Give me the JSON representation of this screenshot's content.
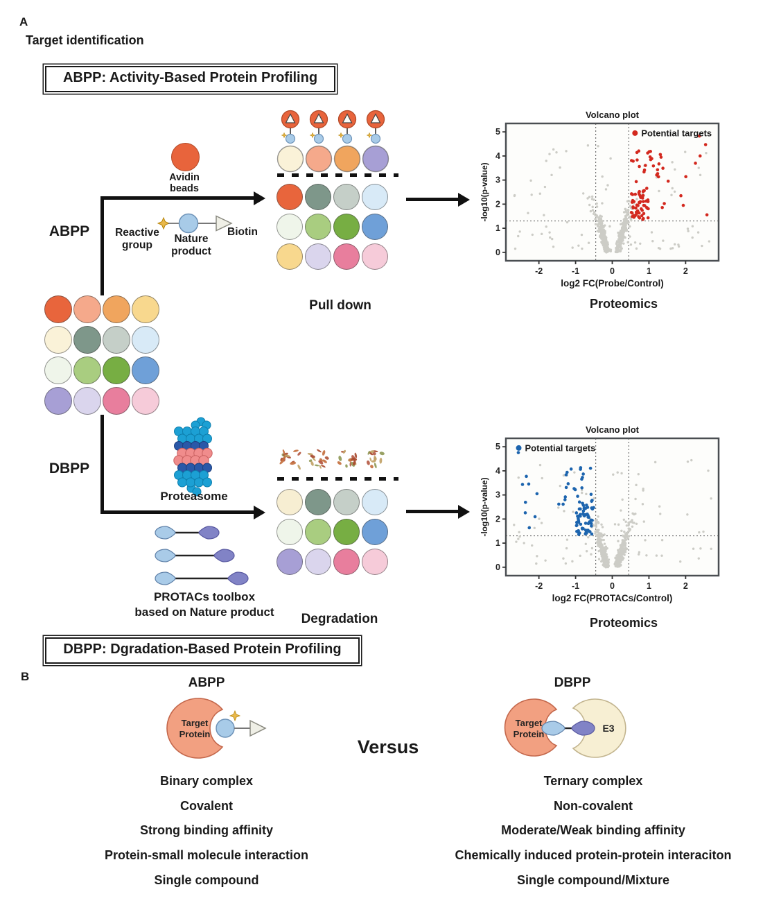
{
  "panelA": {
    "label": "A",
    "title": "Target identification",
    "abpp_box": "ABPP: Activity-Based Protein Profiling",
    "dbpp_box": "DBPP: Dgradation-Based Protein Profiling",
    "abpp_branch": "ABPP",
    "dbpp_branch": "DBPP",
    "avidin_label": "Avidin beads",
    "reactive_group_label": "Reactive group",
    "nature_product_label": "Nature product",
    "biotin_label": "Biotin",
    "pull_down_label": "Pull down",
    "proteomics_top": "Proteomics",
    "proteasome_label": "Proteasome",
    "protacs_label_line1": "PROTACs toolbox",
    "protacs_label_line2": "based on Nature product",
    "degradation_label": "Degradation",
    "proteomics_bottom": "Proteomics",
    "cell_library_rows": [
      [
        "#E8653C",
        "#F5A98B",
        "#F0A55E",
        "#F8D88E"
      ],
      [
        "#FAF2D8",
        "#7E978A",
        "#C5CFC8",
        "#D8EAF7"
      ],
      [
        "#EFF5EA",
        "#A9CD80",
        "#77AE43",
        "#6FA0D8"
      ],
      [
        "#A79FD5",
        "#DAD5ED",
        "#E87E9D",
        "#F6CBD9"
      ]
    ],
    "pulldown": {
      "captured_colors": [
        "#FAF2D8",
        "#F5A98B",
        "#F0A55E",
        "#A79FD5"
      ],
      "rows": [
        [
          "#E8653C",
          "#7E978A",
          "#C5CFC8",
          "#D8EAF7"
        ],
        [
          "#EFF5EA",
          "#A9CD80",
          "#77AE43",
          "#6FA0D8"
        ],
        [
          "#F8D88E",
          "#DAD5ED",
          "#E87E9D",
          "#F6CBD9"
        ]
      ],
      "bead_color": "#E8643C",
      "ligand_color": "#A8CBE8",
      "star_color": "#E8B84B"
    },
    "degradation": {
      "speckle_colors": [
        "#A84A2F",
        "#C4703F",
        "#909A58",
        "#C2A368",
        "#B55B45"
      ],
      "rows": [
        [
          "#F7EED2",
          "#7E978A",
          "#C5CFC8",
          "#D8EAF7"
        ],
        [
          "#EFF5EA",
          "#A9CD80",
          "#77AE43",
          "#6FA0D8"
        ],
        [
          "#A79FD5",
          "#DAD5ED",
          "#E87E9D",
          "#F6CBD9"
        ]
      ]
    },
    "protac_lengths": [
      56,
      78,
      98
    ],
    "proteasome_rows": [
      "cyan",
      "cyan",
      "dark",
      "pink",
      "pink",
      "dark",
      "cyan",
      "cyan"
    ],
    "proteasome_colors": {
      "cyan": "#1CA0D4",
      "dark": "#2A58A8",
      "pink": "#F08C8C"
    }
  },
  "chart_data": [
    {
      "type": "scatter",
      "title": "Volcano plot",
      "xlabel": "log2 FC(Probe/Control)",
      "ylabel": "-log10(p-value)",
      "xlim": [
        -2.9,
        2.9
      ],
      "ylim": [
        -0.35,
        5.35
      ],
      "xticks": [
        -2,
        -1,
        0,
        1,
        2
      ],
      "yticks": [
        0,
        1,
        2,
        3,
        4,
        5
      ],
      "threshold_x": [
        -0.45,
        0.45
      ],
      "threshold_y": 1.3,
      "legend_label": "Potential targets",
      "legend_position": "right",
      "highlight_side": "right",
      "highlight_color": "#D3281E",
      "base_color": "#CCCCC6",
      "points": {
        "funnel": 240,
        "sparse": 85,
        "highlight": 90,
        "seed": 11
      }
    },
    {
      "type": "scatter",
      "title": "Volcano plot",
      "xlabel": "log2 FC(PROTACs/Control)",
      "ylabel": "-log10(p-value)",
      "xlim": [
        -2.9,
        2.9
      ],
      "ylim": [
        -0.35,
        5.35
      ],
      "xticks": [
        -2,
        -1,
        0,
        1,
        2
      ],
      "yticks": [
        0,
        1,
        2,
        3,
        4,
        5
      ],
      "threshold_x": [
        -0.45,
        0.45
      ],
      "threshold_y": 1.3,
      "legend_label": "Potential targets",
      "legend_position": "left",
      "highlight_side": "left",
      "highlight_color": "#1C64AE",
      "base_color": "#CCCCC6",
      "points": {
        "funnel": 240,
        "sparse": 85,
        "highlight": 90,
        "seed": 23
      }
    }
  ],
  "panelB": {
    "label": "B",
    "abpp_title": "ABPP",
    "dbpp_title": "DBPP",
    "versus": "Versus",
    "target_line1": "Target",
    "target_line2": "Protein",
    "e3_label": "E3",
    "abpp_items": [
      "Binary complex",
      "Covalent",
      "Strong binding affinity",
      "Protein-small molecule interaction",
      "Single compound"
    ],
    "dbpp_items": [
      "Ternary complex",
      "Non-covalent",
      "Moderate/Weak binding affinity",
      "Chemically induced protein-protein interaciton",
      "Single compound/Mixture"
    ]
  }
}
